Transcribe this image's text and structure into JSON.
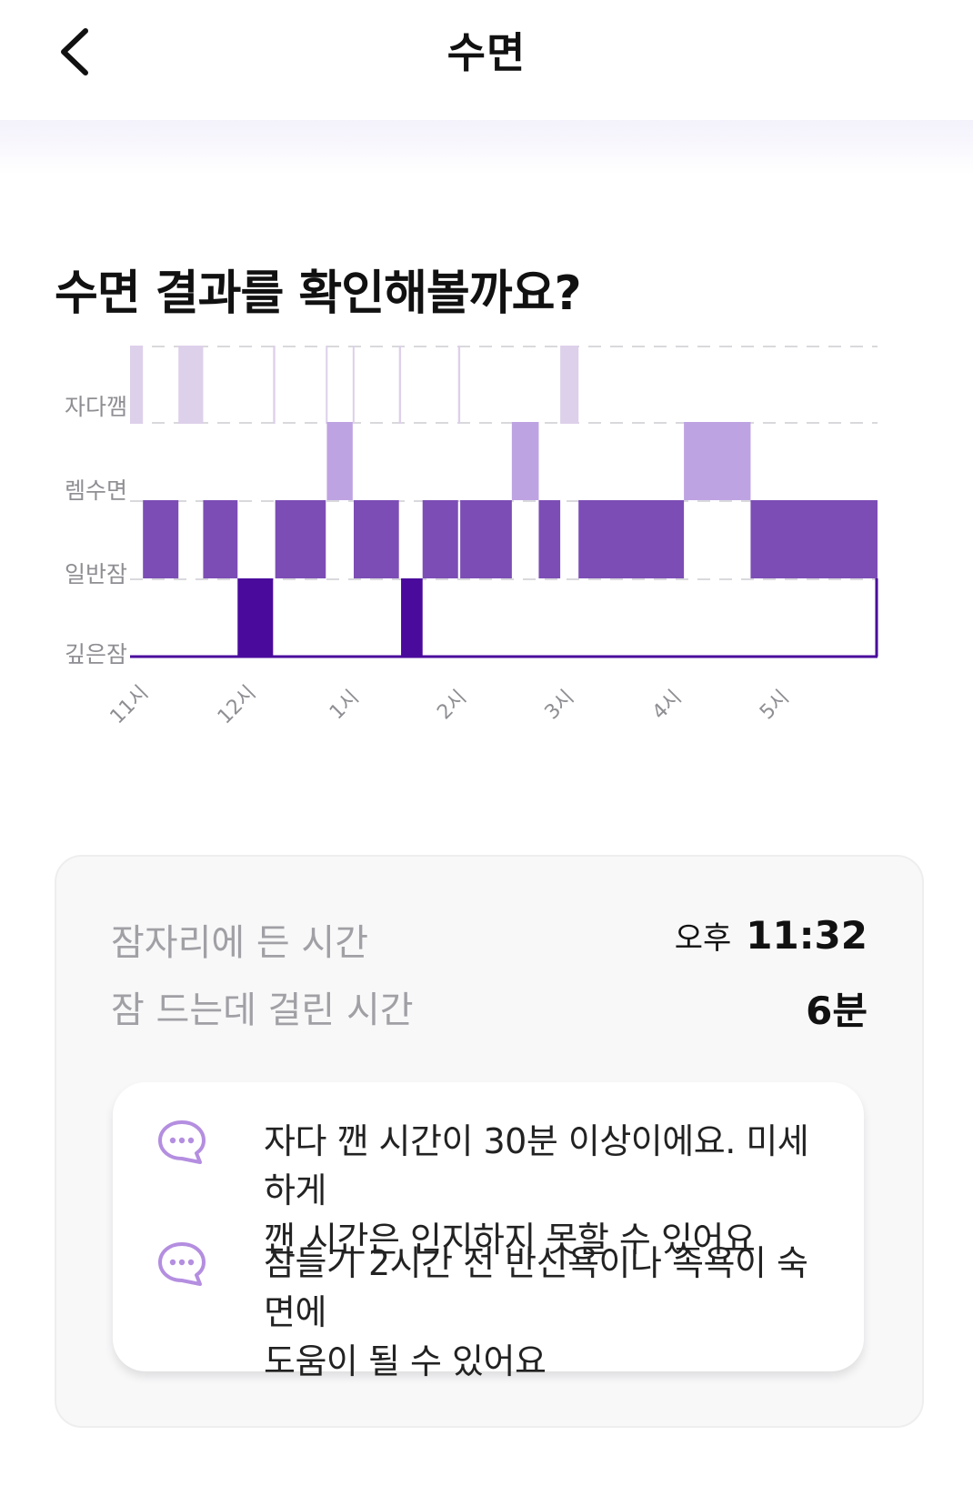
{
  "header": {
    "title": "수면",
    "back_icon": "chevron-left-icon"
  },
  "headline": "수면 결과를 확인해볼까요?",
  "chart_data": {
    "type": "bar",
    "title": "",
    "stages": [
      "자다깸",
      "렘수면",
      "일반잠",
      "깊은잠"
    ],
    "x_ticks": [
      "11시",
      "12시",
      "1시",
      "2시",
      "3시",
      "4시",
      "5시"
    ],
    "x_start_hour": 23,
    "x_end_hour": 29.95,
    "colors": {
      "자다깸": "#ddd0ea",
      "렘수면": "#bea3e2",
      "일반잠": "#7c4db5",
      "깊은잠": "#4a0a9c",
      "grid": "#d9d9dd"
    },
    "segments": [
      {
        "stage": "자다깸",
        "start": 23.0,
        "end": 23.12
      },
      {
        "stage": "일반잠",
        "start": 23.12,
        "end": 23.45
      },
      {
        "stage": "자다깸",
        "start": 23.45,
        "end": 23.68
      },
      {
        "stage": "일반잠",
        "start": 23.68,
        "end": 24.0
      },
      {
        "stage": "깊은잠",
        "start": 24.0,
        "end": 24.33
      },
      {
        "stage": "자다깸",
        "start": 24.33,
        "end": 24.35
      },
      {
        "stage": "일반잠",
        "start": 24.35,
        "end": 24.82
      },
      {
        "stage": "자다깸",
        "start": 24.82,
        "end": 24.83
      },
      {
        "stage": "렘수면",
        "start": 24.83,
        "end": 25.07
      },
      {
        "stage": "자다깸",
        "start": 25.07,
        "end": 25.08
      },
      {
        "stage": "일반잠",
        "start": 25.08,
        "end": 25.5
      },
      {
        "stage": "자다깸",
        "start": 25.5,
        "end": 25.52
      },
      {
        "stage": "깊은잠",
        "start": 25.52,
        "end": 25.72
      },
      {
        "stage": "일반잠",
        "start": 25.72,
        "end": 26.05
      },
      {
        "stage": "자다깸",
        "start": 26.05,
        "end": 26.07
      },
      {
        "stage": "일반잠",
        "start": 26.07,
        "end": 26.55
      },
      {
        "stage": "렘수면",
        "start": 26.55,
        "end": 26.8
      },
      {
        "stage": "일반잠",
        "start": 26.8,
        "end": 27.0
      },
      {
        "stage": "자다깸",
        "start": 27.0,
        "end": 27.17
      },
      {
        "stage": "일반잠",
        "start": 27.17,
        "end": 28.15
      },
      {
        "stage": "렘수면",
        "start": 28.15,
        "end": 28.77
      },
      {
        "stage": "일반잠",
        "start": 28.77,
        "end": 29.95
      }
    ]
  },
  "summary": {
    "bedtime_label": "잠자리에 든 시간",
    "bedtime_ampm": "오후",
    "bedtime_value": "11:32",
    "latency_label": "잠 드는데 걸린 시간",
    "latency_value": "6분"
  },
  "tips": [
    {
      "icon": "chat-bubble-icon",
      "text_line1": "자다 깬 시간이 30분 이상이에요. 미세하게",
      "text_line2": "깬 시간은 인지하지 못할 수 있어요"
    },
    {
      "icon": "chat-bubble-icon",
      "text_line1": "잠들기 2시간 전 반신욕이나 족욕이 숙면에",
      "text_line2": "도움이 될 수 있어요"
    }
  ]
}
